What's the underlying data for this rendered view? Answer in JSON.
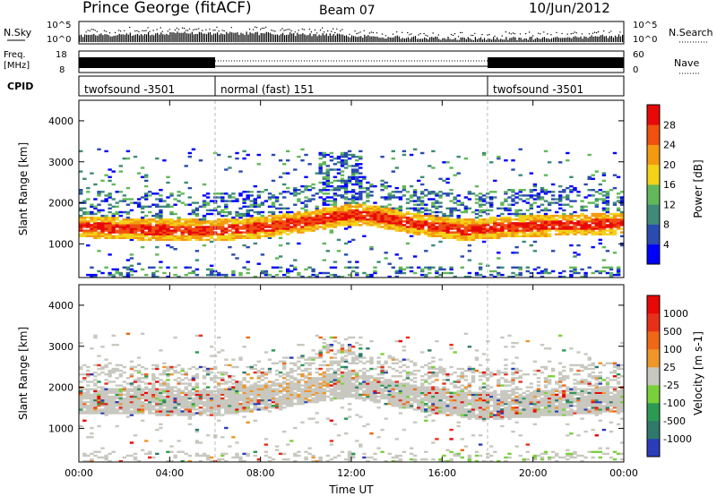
{
  "header": {
    "station": "Prince George (fitACF)",
    "beam": "Beam 07",
    "date": "10/Jun/2012"
  },
  "top_panels": {
    "nsky_label": "N.Sky",
    "nsky_ticks": [
      "10^5",
      "10^0"
    ],
    "nsearch_label": "N.Search",
    "nsearch_ticks": [
      "10^5",
      "10^0"
    ],
    "freq_label_1": "Freq.",
    "freq_label_2": "[MHz]",
    "freq_ticks": [
      "18",
      "8"
    ],
    "nave_label": "Nave",
    "nave_ticks": [
      "60",
      "0"
    ],
    "cpid_label": "CPID",
    "cpid_segments": [
      {
        "label": "twofsound -3501",
        "start": 0,
        "end": 6
      },
      {
        "label": "normal (fast) 151",
        "start": 6,
        "end": 18
      },
      {
        "label": "twofsound -3501",
        "start": 18,
        "end": 24
      }
    ]
  },
  "power_colorbar": {
    "label": "Power [dB]",
    "ticks": [
      "28",
      "24",
      "20",
      "16",
      "12",
      "8",
      "4"
    ],
    "colors": [
      "#0000ff",
      "#2a4bb0",
      "#3f8a78",
      "#62b85a",
      "#f3d21a",
      "#f39a10",
      "#f05010",
      "#e80808"
    ]
  },
  "velocity_colorbar": {
    "label": "Velocity [m s-1]",
    "ticks": [
      "1000",
      "500",
      "100",
      "25",
      "-25",
      "-100",
      "-500",
      "-1000"
    ],
    "colors": [
      "#2a3cb8",
      "#2f7a6a",
      "#2c9a52",
      "#7ad03a",
      "#c8c8c0",
      "#ee9628",
      "#ef6818",
      "#e83018",
      "#e80808"
    ]
  },
  "chart_data": {
    "type": "heatmap",
    "x_ticks": [
      "00:00",
      "04:00",
      "08:00",
      "12:00",
      "16:00",
      "20:00",
      "00:00"
    ],
    "xlabel": "Time UT",
    "xlim_hours": [
      0,
      24
    ],
    "panels": [
      {
        "name": "power",
        "ylabel": "Slant Range [km]",
        "ylim": [
          180,
          4500
        ],
        "y_ticks": [
          1000,
          2000,
          3000,
          4000
        ],
        "main_echo_band_km": [
          {
            "t": 0,
            "range": 1400
          },
          {
            "t": 3,
            "range": 1330
          },
          {
            "t": 6,
            "range": 1310
          },
          {
            "t": 8,
            "range": 1380
          },
          {
            "t": 10,
            "range": 1520
          },
          {
            "t": 11,
            "range": 1620
          },
          {
            "t": 12,
            "range": 1700
          },
          {
            "t": 13,
            "range": 1660
          },
          {
            "t": 15,
            "range": 1450
          },
          {
            "t": 17,
            "range": 1320
          },
          {
            "t": 19,
            "range": 1400
          },
          {
            "t": 24,
            "range": 1480
          }
        ]
      },
      {
        "name": "velocity",
        "ylabel": "Slant Range [km]",
        "ylim": [
          180,
          4500
        ],
        "y_ticks": [
          1000,
          2000,
          3000,
          4000
        ],
        "main_echo_band_km": [
          {
            "t": 0,
            "range": 1650
          },
          {
            "t": 6,
            "range": 1600
          },
          {
            "t": 9,
            "range": 1800
          },
          {
            "t": 12,
            "range": 2050
          },
          {
            "t": 15,
            "range": 1700
          },
          {
            "t": 18,
            "range": 1500
          },
          {
            "t": 24,
            "range": 1700
          }
        ]
      }
    ]
  }
}
